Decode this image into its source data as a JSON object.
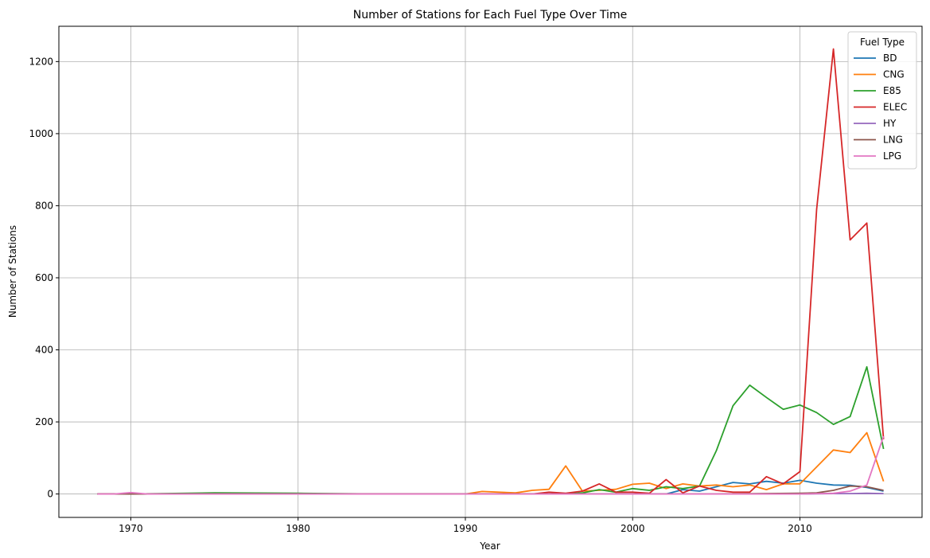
{
  "chart_data": {
    "type": "line",
    "title": "Number of Stations for Each Fuel Type Over Time",
    "xlabel": "Year",
    "ylabel": "Number of Stations",
    "xlim": [
      1965.7,
      2017.3
    ],
    "ylim": [
      -65,
      1298
    ],
    "xticks": [
      1970,
      1980,
      1990,
      2000,
      2010
    ],
    "yticks": [
      0,
      200,
      400,
      600,
      800,
      1000,
      1200
    ],
    "grid": true,
    "legend": {
      "title": "Fuel Type",
      "position": "upper-right"
    },
    "series": [
      {
        "name": "BD",
        "color": "#1f77b4",
        "x": [
          1968,
          1970,
          1975,
          1980,
          1985,
          1990,
          1995,
          1996,
          1997,
          1998,
          1999,
          2000,
          2001,
          2002,
          2003,
          2004,
          2005,
          2006,
          2007,
          2008,
          2009,
          2010,
          2011,
          2012,
          2013,
          2014,
          2015
        ],
        "y": [
          0,
          0,
          0,
          0,
          0,
          0,
          0,
          0,
          0,
          0,
          0,
          0,
          0,
          0,
          12,
          8,
          20,
          32,
          28,
          35,
          30,
          38,
          30,
          25,
          24,
          18,
          8
        ]
      },
      {
        "name": "CNG",
        "color": "#ff7f0e",
        "x": [
          1968,
          1970,
          1975,
          1980,
          1985,
          1990,
          1991,
          1992,
          1993,
          1994,
          1995,
          1996,
          1997,
          1998,
          1999,
          2000,
          2001,
          2002,
          2003,
          2004,
          2005,
          2006,
          2007,
          2008,
          2009,
          2010,
          2011,
          2012,
          2013,
          2014,
          2015
        ],
        "y": [
          0,
          0,
          0,
          0,
          0,
          0,
          7,
          5,
          3,
          10,
          13,
          78,
          8,
          10,
          13,
          27,
          30,
          15,
          28,
          22,
          25,
          20,
          25,
          12,
          28,
          28,
          75,
          122,
          115,
          170,
          35
        ]
      },
      {
        "name": "E85",
        "color": "#2ca02c",
        "x": [
          1968,
          1970,
          1975,
          1980,
          1985,
          1990,
          1995,
          1996,
          1997,
          1998,
          1999,
          2000,
          2001,
          2002,
          2003,
          2004,
          2005,
          2006,
          2007,
          2008,
          2009,
          2010,
          2011,
          2012,
          2013,
          2014,
          2015
        ],
        "y": [
          0,
          0,
          3,
          2,
          0,
          0,
          0,
          0,
          3,
          12,
          5,
          15,
          10,
          20,
          15,
          22,
          120,
          245,
          302,
          268,
          235,
          247,
          226,
          193,
          215,
          353,
          125
        ]
      },
      {
        "name": "ELEC",
        "color": "#d62728",
        "x": [
          1968,
          1970,
          1975,
          1980,
          1985,
          1990,
          1994,
          1995,
          1996,
          1997,
          1998,
          1999,
          2000,
          2001,
          2002,
          2003,
          2004,
          2005,
          2006,
          2007,
          2008,
          2009,
          2010,
          2011,
          2012,
          2013,
          2014,
          2015
        ],
        "y": [
          0,
          0,
          0,
          0,
          0,
          0,
          0,
          5,
          2,
          8,
          28,
          5,
          5,
          2,
          40,
          3,
          22,
          10,
          5,
          5,
          48,
          28,
          62,
          790,
          1235,
          705,
          752,
          152
        ]
      },
      {
        "name": "HY",
        "color": "#9467bd",
        "x": [
          1968,
          1970,
          1975,
          1980,
          1985,
          1990,
          1995,
          2000,
          2005,
          2010,
          2012,
          2013,
          2014,
          2015
        ],
        "y": [
          0,
          0,
          0,
          0,
          0,
          0,
          0,
          0,
          0,
          0,
          1,
          1,
          2,
          1
        ]
      },
      {
        "name": "LNG",
        "color": "#8c564b",
        "x": [
          1968,
          1970,
          1975,
          1980,
          1985,
          1990,
          1995,
          2000,
          2005,
          2010,
          2011,
          2012,
          2013,
          2014,
          2015
        ],
        "y": [
          0,
          0,
          0,
          0,
          0,
          0,
          0,
          0,
          0,
          2,
          3,
          10,
          22,
          20,
          10
        ]
      },
      {
        "name": "LPG",
        "color": "#e377c2",
        "x": [
          1968,
          1969,
          1970,
          1971,
          1975,
          1980,
          1985,
          1990,
          1995,
          2000,
          2005,
          2010,
          2011,
          2012,
          2013,
          2014,
          2015
        ],
        "y": [
          0,
          0,
          4,
          0,
          0,
          0,
          0,
          0,
          0,
          0,
          0,
          0,
          1,
          2,
          8,
          25,
          160
        ]
      }
    ]
  }
}
